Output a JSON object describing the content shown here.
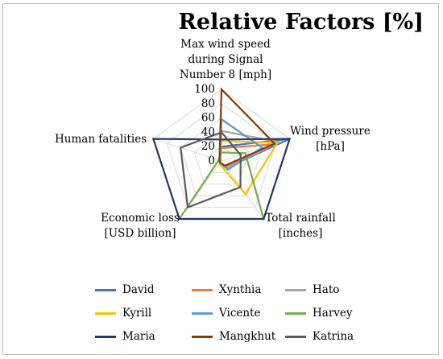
{
  "chart_data": {
    "type": "radar",
    "title": "Relative Factors [%]",
    "axes": [
      "Max wind speed\nduring Signal\nNumber 8 [mph]",
      "Wind pressure\n[hPa]",
      "Total rainfall\n[inches]",
      "Economic loss\n[USD billion]",
      "Human fatalities"
    ],
    "radial_ticks": [
      "0",
      "20",
      "40",
      "60",
      "80",
      "100"
    ],
    "rlim": [
      0,
      100
    ],
    "grid": true,
    "legend_position": "bottom",
    "series": [
      {
        "name": "David",
        "color": "#4472c4",
        "values": [
          20,
          100,
          12,
          3,
          4
        ]
      },
      {
        "name": "Xynthia",
        "color": "#ed7d31",
        "values": [
          18,
          75,
          10,
          4,
          3
        ]
      },
      {
        "name": "Hato",
        "color": "#a5a5a5",
        "values": [
          42,
          85,
          12,
          5,
          3
        ]
      },
      {
        "name": "Kyrill",
        "color": "#ffc000",
        "values": [
          28,
          82,
          57,
          5,
          3
        ]
      },
      {
        "name": "Vicente",
        "color": "#5b9bd5",
        "values": [
          58,
          60,
          15,
          3,
          2
        ]
      },
      {
        "name": "Harvey",
        "color": "#70ad47",
        "values": [
          12,
          35,
          100,
          100,
          4
        ]
      },
      {
        "name": "Maria",
        "color": "#203864",
        "values": [
          30,
          100,
          100,
          100,
          100
        ]
      },
      {
        "name": "Mangkhut",
        "color": "#843c0c",
        "values": [
          100,
          78,
          8,
          3,
          3
        ]
      },
      {
        "name": "Katrina",
        "color": "#595959",
        "values": [
          40,
          28,
          45,
          80,
          60
        ]
      }
    ]
  }
}
